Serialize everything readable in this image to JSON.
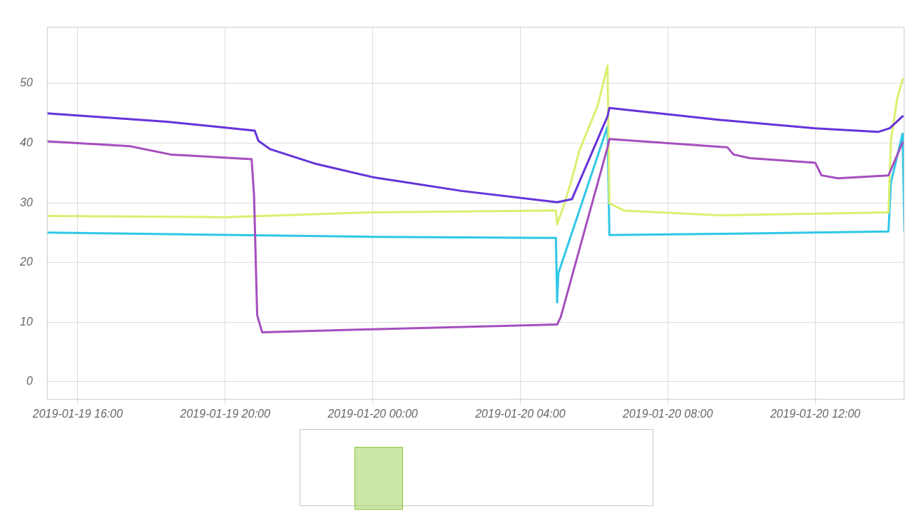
{
  "chart_data": {
    "type": "line",
    "xlim": [
      "2019-01-19T15:10",
      "2019-01-20T14:25"
    ],
    "xticks": [
      {
        "value": "2019-01-19T16:00",
        "label": "2019-01-19 16:00"
      },
      {
        "value": "2019-01-19T20:00",
        "label": "2019-01-19 20:00"
      },
      {
        "value": "2019-01-20T00:00",
        "label": "2019-01-20 00:00"
      },
      {
        "value": "2019-01-20T04:00",
        "label": "2019-01-20 04:00"
      },
      {
        "value": "2019-01-20T08:00",
        "label": "2019-01-20 08:00"
      },
      {
        "value": "2019-01-20T12:00",
        "label": "2019-01-20 12:00"
      }
    ],
    "ylim": [
      -3,
      59.5
    ],
    "yticks": [
      0,
      10,
      20,
      30,
      40,
      50
    ],
    "grid": true,
    "legend": false,
    "marker": "none",
    "line_style": "solid",
    "series": [
      {
        "color": "#6633d9",
        "x": [
          "2019-01-19T15:10",
          "2019-01-19T18:25",
          "2019-01-19T20:00",
          "2019-01-19T20:48",
          "2019-01-19T20:54",
          "2019-01-19T21:13",
          "2019-01-19T22:25",
          "2019-01-20T00:00",
          "2019-01-20T02:24",
          "2019-01-20T05:00",
          "2019-01-20T05:24",
          "2019-01-20T06:22",
          "2019-01-20T06:25",
          "2019-01-20T09:25",
          "2019-01-20T12:00",
          "2019-01-20T13:43",
          "2019-01-20T14:01",
          "2019-01-20T14:22"
        ],
        "values": [
          45.0,
          43.6,
          42.6,
          42.1,
          40.4,
          39.0,
          36.6,
          34.3,
          32.0,
          30.1,
          30.6,
          44.5,
          45.9,
          43.9,
          42.5,
          41.9,
          42.5,
          44.5
        ]
      },
      {
        "color": "#a64fbf",
        "x": [
          "2019-01-19T15:10",
          "2019-01-19T17:25",
          "2019-01-19T18:31",
          "2019-01-19T20:43",
          "2019-01-19T20:47",
          "2019-01-19T20:52",
          "2019-01-19T21:00",
          "2019-01-20T00:00",
          "2019-01-20T05:00",
          "2019-01-20T05:06",
          "2019-01-20T06:22",
          "2019-01-20T06:25",
          "2019-01-20T09:37",
          "2019-01-20T09:47",
          "2019-01-20T10:13",
          "2019-01-20T12:00",
          "2019-01-20T12:10",
          "2019-01-20T12:37",
          "2019-01-20T13:59",
          "2019-01-20T14:22"
        ],
        "values": [
          40.3,
          39.5,
          38.1,
          37.3,
          31.1,
          11.2,
          8.3,
          8.8,
          9.6,
          10.9,
          39.3,
          40.7,
          39.3,
          38.1,
          37.5,
          36.7,
          34.6,
          34.1,
          34.6,
          40.1
        ]
      },
      {
        "color": "#dcef70",
        "x": [
          "2019-01-19T15:10",
          "2019-01-19T20:00",
          "2019-01-20T00:00",
          "2019-01-20T04:58",
          "2019-01-20T05:00",
          "2019-01-20T05:12",
          "2019-01-20T05:24",
          "2019-01-20T05:36",
          "2019-01-20T06:06",
          "2019-01-20T06:22",
          "2019-01-20T06:25",
          "2019-01-20T06:49",
          "2019-01-20T09:25",
          "2019-01-20T13:59",
          "2019-01-20T14:03",
          "2019-01-20T14:13",
          "2019-01-20T14:22"
        ],
        "values": [
          27.8,
          27.6,
          28.4,
          28.7,
          26.4,
          29.9,
          34.0,
          38.7,
          46.3,
          53.0,
          29.9,
          28.7,
          27.9,
          28.4,
          40.4,
          47.4,
          50.7
        ]
      },
      {
        "color": "#30c8e6",
        "x": [
          "2019-01-19T15:10",
          "2019-01-20T00:00",
          "2019-01-20T04:58",
          "2019-01-20T05:00",
          "2019-01-20T05:02",
          "2019-01-20T06:22",
          "2019-01-20T06:25",
          "2019-01-20T09:25",
          "2019-01-20T13:59",
          "2019-01-20T14:03",
          "2019-01-20T14:22",
          "2019-01-20T14:25"
        ],
        "values": [
          25.0,
          24.3,
          24.1,
          13.3,
          18.2,
          42.8,
          24.6,
          24.8,
          25.2,
          33.4,
          41.6,
          25.2
        ]
      }
    ]
  }
}
